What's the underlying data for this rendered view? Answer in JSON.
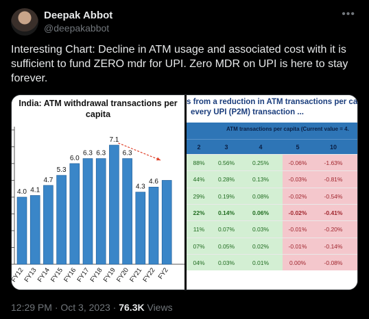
{
  "author": {
    "name": "Deepak Abbot",
    "handle": "@deepakabbot"
  },
  "more_icon": "more-horizontal-icon",
  "tweet": {
    "text": "Interesting Chart: Decline in ATM usage and associated cost with it is sufficient to fund ZERO mdr for UPI. Zero MDR on UPI is here to stay forever."
  },
  "media": {
    "left_title_line1": "India: ATM withdrawal transactions per",
    "left_title_line2": "capita",
    "right_title_line1": "s from a reduction in ATM transactions per cap",
    "right_title_line2": "every UPI (P2M) transaction ...",
    "right_header": "ATM transactions per capita (Current value = 4.",
    "right_columns": [
      "2",
      "3",
      "4",
      "5",
      "10"
    ],
    "right_rows": [
      [
        "88%",
        "0.56%",
        "0.25%",
        "-0.06%",
        "-1.63%"
      ],
      [
        "44%",
        "0.28%",
        "0.13%",
        "-0.03%",
        "-0.81%"
      ],
      [
        "29%",
        "0.19%",
        "0.08%",
        "-0.02%",
        "-0.54%"
      ],
      [
        "22%",
        "0.14%",
        "0.06%",
        "-0.02%",
        "-0.41%"
      ],
      [
        "11%",
        "0.07%",
        "0.03%",
        "-0.01%",
        "-0.20%"
      ],
      [
        "07%",
        "0.05%",
        "0.02%",
        "-0.01%",
        "-0.14%"
      ],
      [
        "04%",
        "0.03%",
        "0.01%",
        "0.00%",
        "-0.08%"
      ]
    ],
    "bold_row_index": 3
  },
  "chart_data": {
    "type": "bar",
    "title": "India: ATM withdrawal transactions per capita",
    "categories": [
      "FY12",
      "FY13",
      "FY14",
      "FY15",
      "FY16",
      "FY17",
      "FY18",
      "FY19",
      "FY20",
      "FY21",
      "FY22",
      "FY2"
    ],
    "values": [
      4.0,
      4.1,
      4.7,
      5.3,
      6.0,
      6.3,
      6.3,
      7.1,
      6.3,
      4.3,
      4.6,
      5.0
    ],
    "labels": [
      "4.0",
      "4.1",
      "4.7",
      "5.3",
      "6.0",
      "6.3",
      "6.3",
      "7.1",
      "6.3",
      "4.3",
      "4.6",
      ""
    ],
    "ylim": [
      0,
      8.2
    ],
    "bar_color": "#3a86c8",
    "trend_arrow_color": "#e0402a"
  },
  "footer": {
    "time": "12:29 PM",
    "sep1": " · ",
    "date": "Oct 3, 2023",
    "sep2": " · ",
    "views_count": "76.3K",
    "views_label": " Views"
  }
}
